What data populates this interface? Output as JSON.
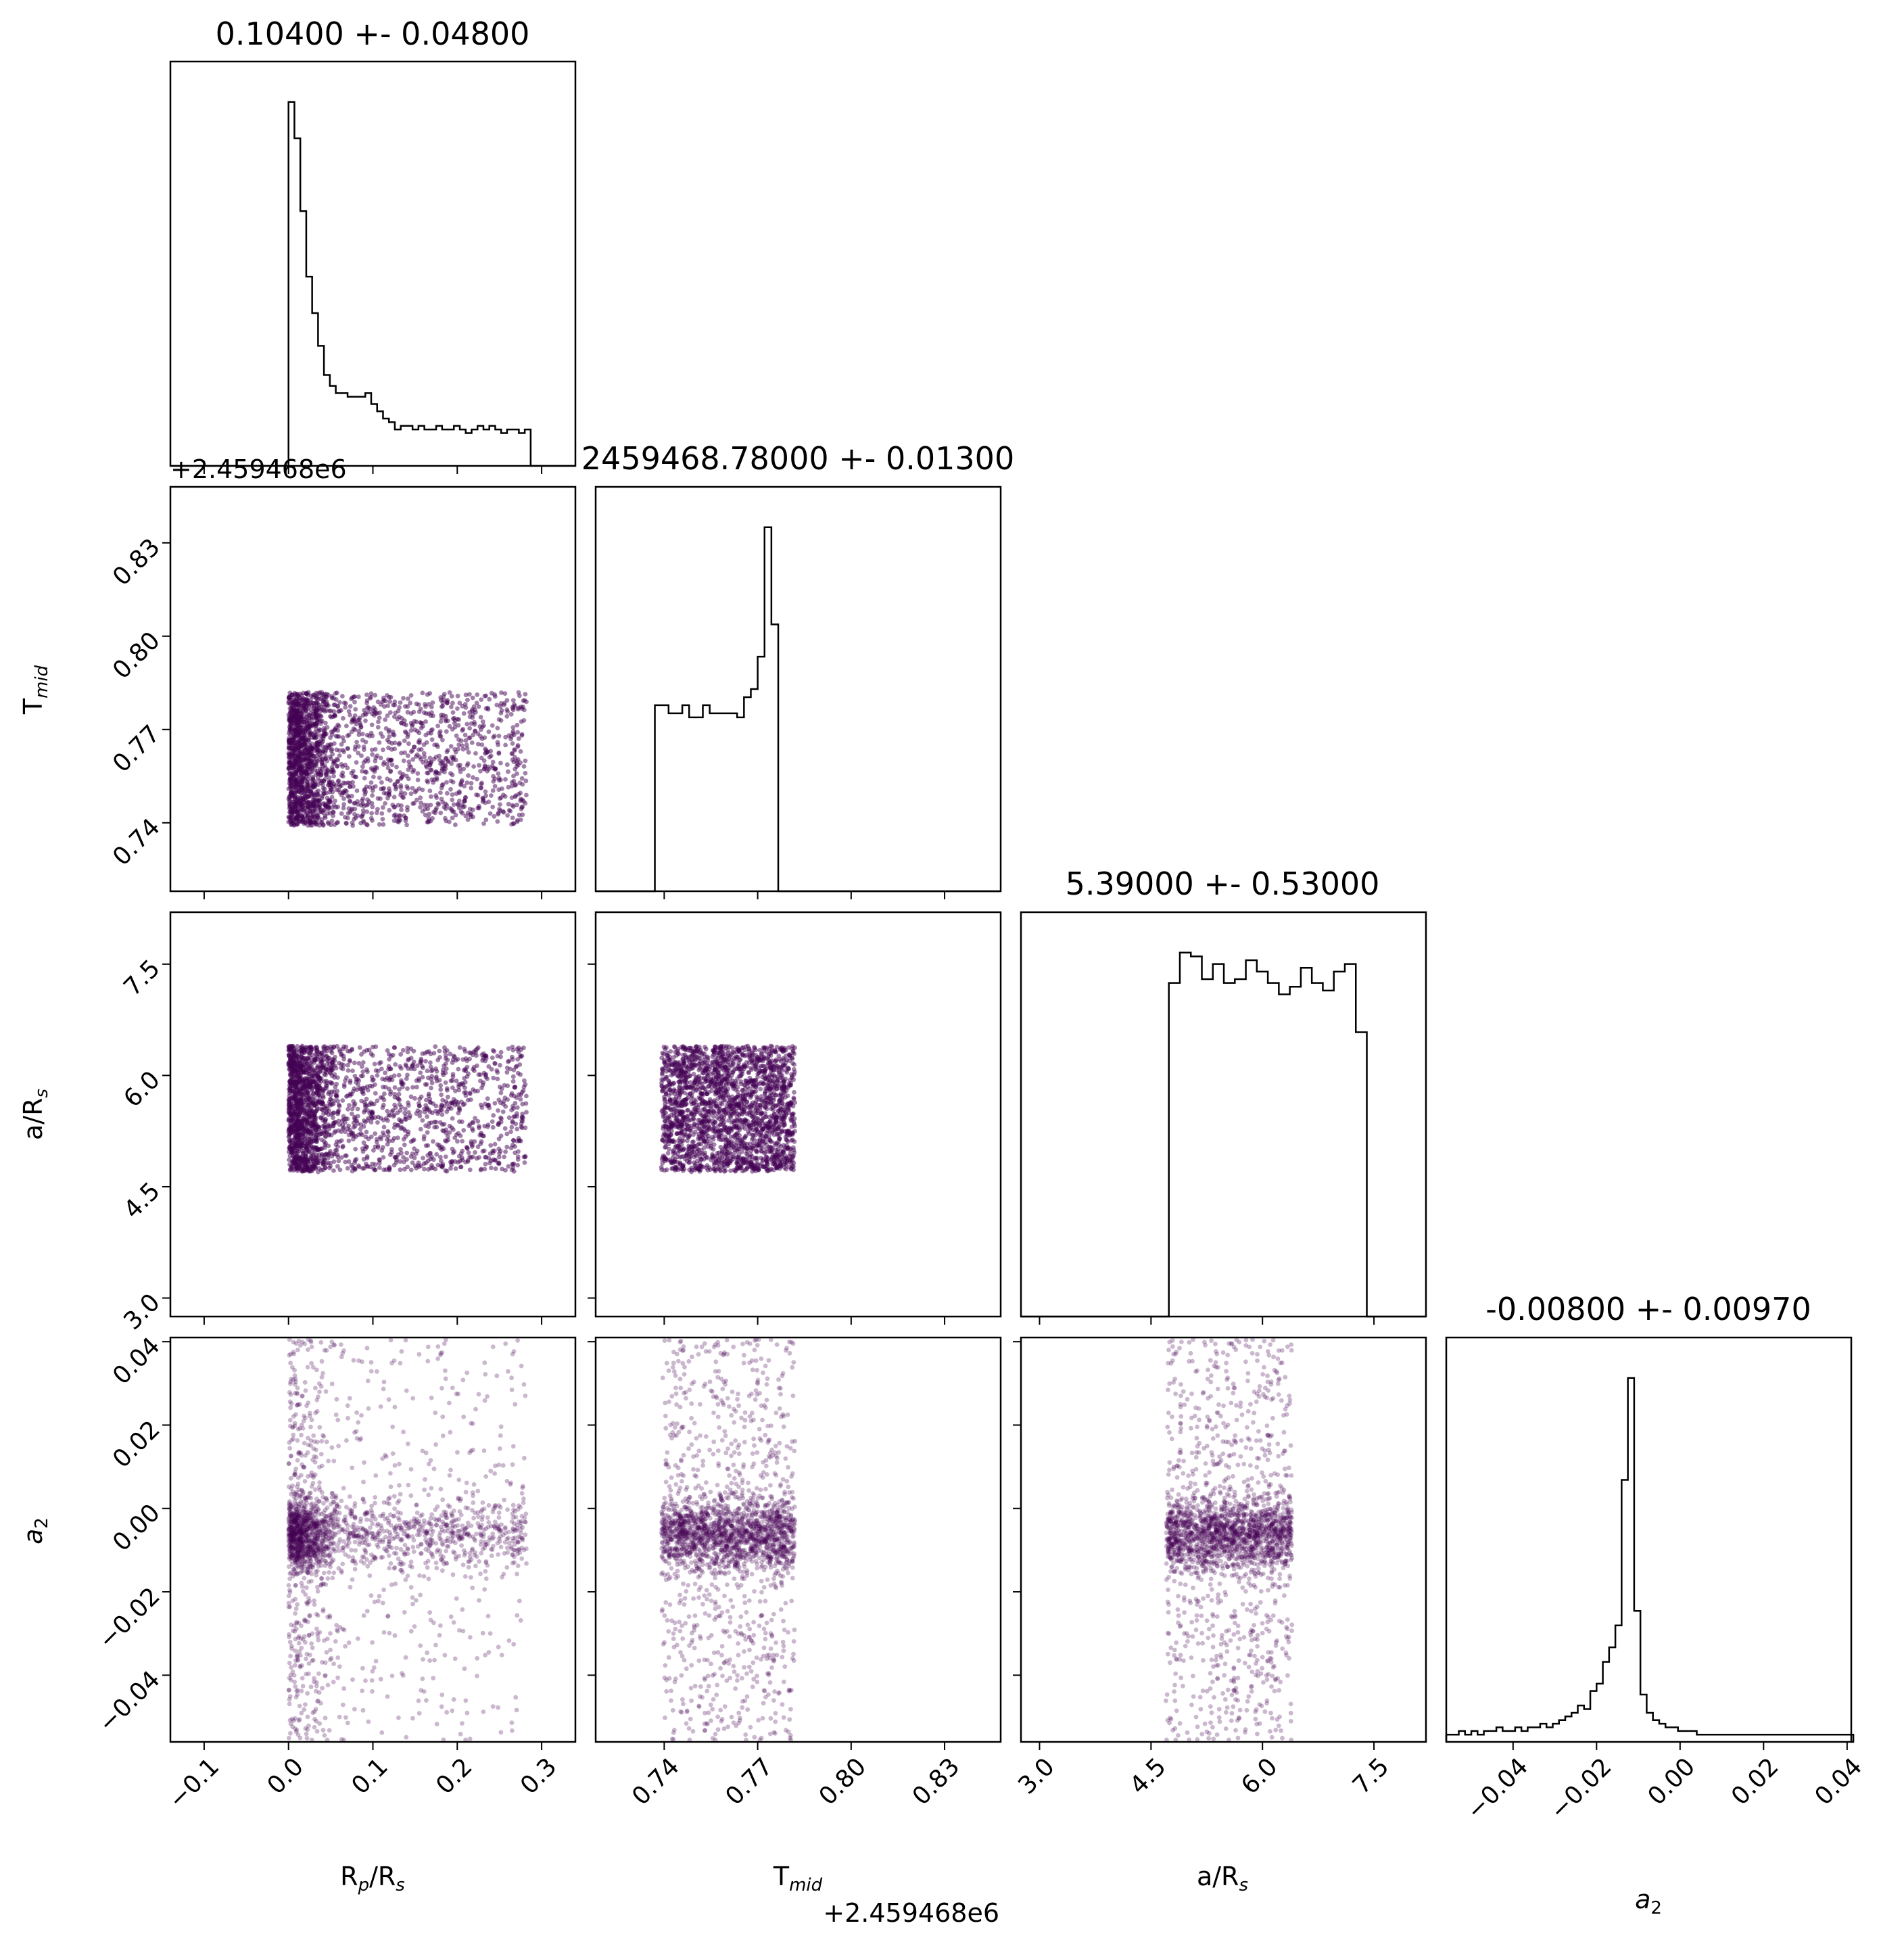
{
  "figure": {
    "type": "corner plot",
    "parameters": [
      {
        "key": "rprs",
        "label_main": "R",
        "label_sub1": "p",
        "label_mid": "/R",
        "label_sub2": "s"
      },
      {
        "key": "tmid",
        "label_main": "T",
        "label_sub1": "mid",
        "label_mid": "",
        "label_sub2": ""
      },
      {
        "key": "ars",
        "label_main": "a/R",
        "label_sub1": "s",
        "label_mid": "",
        "label_sub2": ""
      },
      {
        "key": "a2",
        "label_main": "a",
        "label_sub1": "2",
        "label_mid": "",
        "label_sub2": ""
      }
    ],
    "titles": [
      "0.10400 +- 0.04800",
      "2459468.78000 +- 0.01300",
      "5.39000 +- 0.53000",
      "-0.00800 +- 0.00970"
    ],
    "offset_text": "+2.459468e6",
    "point_color": "#440154"
  },
  "chart_data": {
    "type": "histogram",
    "axes": {
      "rprs": {
        "range": [
          -0.14,
          0.34
        ],
        "ticks": [
          -0.1,
          0.0,
          0.1,
          0.2,
          0.3
        ],
        "tick_labels": [
          "−0.1",
          "0.0",
          "0.1",
          "0.2",
          "0.3"
        ]
      },
      "tmid": {
        "range": [
          0.718,
          0.848
        ],
        "ticks": [
          0.74,
          0.77,
          0.8,
          0.83
        ],
        "tick_labels": [
          "0.74",
          "0.77",
          "0.80",
          "0.83"
        ],
        "offset": 2459468
      },
      "ars": {
        "range": [
          2.75,
          8.2
        ],
        "ticks": [
          3.0,
          4.5,
          6.0,
          7.5
        ],
        "tick_labels": [
          "3.0",
          "4.5",
          "6.0",
          "7.5"
        ]
      },
      "a2": {
        "range": [
          -0.056,
          0.041
        ],
        "ticks": [
          -0.04,
          -0.02,
          0.0,
          0.02,
          0.04
        ],
        "tick_labels": [
          "−0.04",
          "−0.02",
          "0.00",
          "0.02",
          "0.04"
        ]
      }
    },
    "histograms": {
      "rprs": {
        "x0": 0.0,
        "bin_width": 0.007,
        "counts": [
          100,
          90,
          70,
          52,
          42,
          33,
          25,
          22,
          20,
          20,
          19,
          19,
          19,
          20,
          17,
          15,
          13,
          12,
          10,
          11,
          11,
          10,
          11,
          10,
          10,
          11,
          10,
          10,
          11,
          10,
          9,
          10,
          11,
          10,
          11,
          10,
          9,
          10,
          10,
          9,
          10,
          0
        ]
      },
      "tmid": {
        "x0": 0.737,
        "bin_width": 0.0022,
        "counts": [
          46,
          46,
          44,
          44,
          46,
          43,
          43,
          46,
          44,
          44,
          44,
          44,
          43,
          48,
          50,
          58,
          90,
          66,
          0
        ]
      },
      "ars": {
        "x0": 4.74,
        "bin_width": 0.148,
        "counts": [
          88,
          96,
          95,
          89,
          93,
          88,
          89,
          94,
          91,
          88,
          85,
          87,
          92,
          88,
          86,
          91,
          93,
          75,
          0
        ]
      },
      "a2": {
        "x0": -0.056,
        "bin_width": 0.0015,
        "counts": [
          2,
          2,
          3,
          2,
          3,
          2,
          3,
          3,
          4,
          3,
          3,
          4,
          3,
          4,
          4,
          5,
          4,
          5,
          6,
          7,
          8,
          10,
          9,
          14,
          16,
          22,
          26,
          32,
          72,
          100,
          36,
          13,
          8,
          6,
          5,
          4,
          4,
          3,
          3,
          3,
          2,
          2,
          2,
          2,
          2,
          2,
          2,
          2,
          2,
          2,
          2,
          2,
          2,
          2,
          2,
          2,
          2,
          2,
          2,
          2,
          2,
          2,
          2,
          2,
          2
        ]
      }
    },
    "sample_bounds": {
      "rprs": [
        0.0,
        0.282
      ],
      "tmid": [
        0.739,
        0.782
      ],
      "ars": [
        4.7,
        6.4
      ],
      "a2": [
        -0.056,
        0.041
      ],
      "a2_core_sigma": 0.0045,
      "a2_core_center": -0.006
    }
  }
}
